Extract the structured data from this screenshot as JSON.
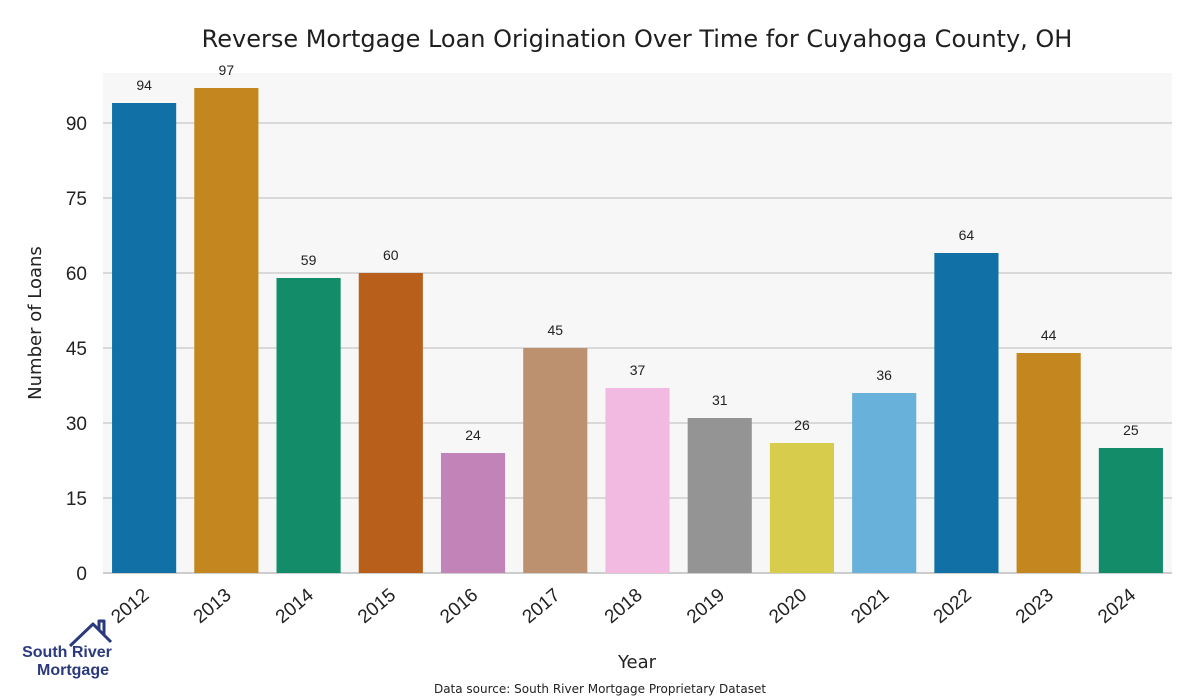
{
  "chart_data": {
    "type": "bar",
    "title": "Reverse Mortgage Loan Origination Over Time for Cuyahoga County, OH",
    "xlabel": "Year",
    "ylabel": "Number of Loans",
    "categories": [
      "2012",
      "2013",
      "2014",
      "2015",
      "2016",
      "2017",
      "2018",
      "2019",
      "2020",
      "2021",
      "2022",
      "2023",
      "2024"
    ],
    "values": [
      94,
      97,
      59,
      60,
      24,
      45,
      37,
      31,
      26,
      36,
      64,
      44,
      25
    ],
    "data_labels": [
      "94",
      "97",
      "59",
      "60",
      "24",
      "45",
      "37",
      "31",
      "26",
      "36",
      "64",
      "44",
      "25"
    ],
    "ylim": [
      0,
      100
    ],
    "yticks": [
      0,
      15,
      30,
      45,
      60,
      75,
      90
    ],
    "grid": true,
    "legend": "none",
    "colors": [
      "#1170a6",
      "#c4871f",
      "#138c6a",
      "#b95f1c",
      "#c283b8",
      "#bc916f",
      "#f2b9e1",
      "#949494",
      "#d7cc4b",
      "#68b1da",
      "#1170a6",
      "#c4871f",
      "#138c6a"
    ]
  },
  "footer": {
    "source": "Data source: South River Mortgage Proprietary Dataset"
  },
  "logo": {
    "line1": "South River",
    "line2": "Mortgage",
    "color": "#2a3a7c"
  }
}
